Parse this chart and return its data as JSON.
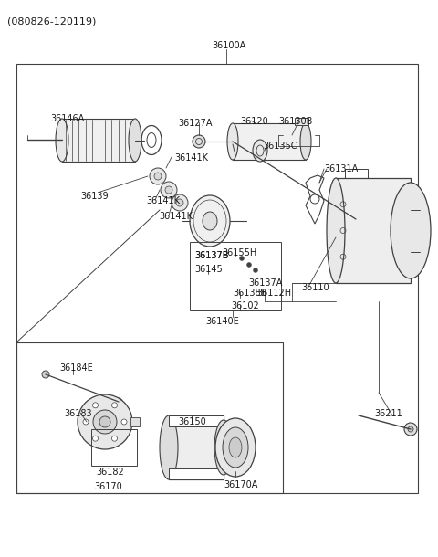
{
  "bg": "#ffffff",
  "lc": "#404040",
  "tc": "#1a1a1a",
  "title": "(080826-120119)",
  "label_36100A": "36100A",
  "label_36146A": "36146A",
  "label_36127A": "36127A",
  "label_36120": "36120",
  "label_36130B": "36130B",
  "label_36141K_1": "36141K",
  "label_36141K_2": "36141K",
  "label_36141K_3": "36141K",
  "label_36135C": "36135C",
  "label_36131A": "36131A",
  "label_36139": "36139",
  "label_36137B": "36137B",
  "label_36155H": "36155H",
  "label_36145": "36145",
  "label_36137A": "36137A",
  "label_36138B": "36138B",
  "label_36112H": "36112H",
  "label_36102": "36102",
  "label_36110": "36110",
  "label_36140E": "36140E",
  "label_36184E": "36184E",
  "label_36183": "36183",
  "label_36182": "36182",
  "label_36170": "36170",
  "label_36150": "36150",
  "label_36170A": "36170A",
  "label_36211": "36211",
  "fontsize_label": 7.0,
  "fontsize_title": 8.0
}
